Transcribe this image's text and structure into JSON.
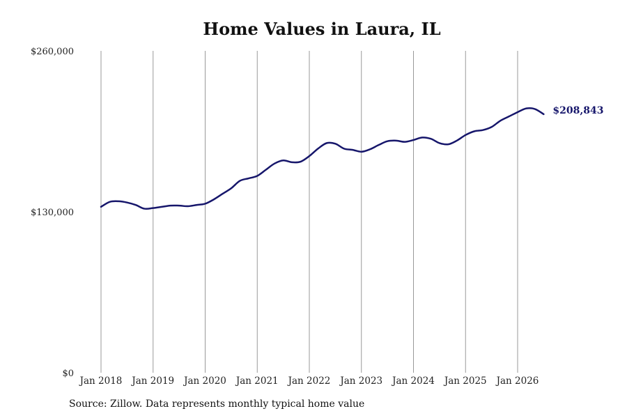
{
  "chart_data": {
    "type": "line",
    "title": "Home Values in Laura, IL",
    "xlabel": "",
    "ylabel": "",
    "source": "Source: Zillow. Data represents monthly typical home value",
    "x_tick_labels": [
      "Jan 2018",
      "Jan 2019",
      "Jan 2020",
      "Jan 2021",
      "Jan 2022",
      "Jan 2023",
      "Jan 2024",
      "Jan 2025",
      "Jan 2026"
    ],
    "y_tick_labels": [
      "$0",
      "$130,000",
      "$260,000"
    ],
    "ylim": [
      0,
      260000
    ],
    "xlim": [
      "2018-01",
      "2026-07"
    ],
    "grid": "vertical lines at each January",
    "line_color": "#16166b",
    "end_label": "$208,843",
    "series": [
      {
        "points": [
          [
            "2018-01",
            134000
          ],
          [
            "2018-03",
            138000
          ],
          [
            "2018-05",
            138500
          ],
          [
            "2018-07",
            137500
          ],
          [
            "2018-09",
            135500
          ],
          [
            "2018-11",
            132500
          ],
          [
            "2019-01",
            133000
          ],
          [
            "2019-03",
            134000
          ],
          [
            "2019-05",
            135000
          ],
          [
            "2019-07",
            135000
          ],
          [
            "2019-09",
            134500
          ],
          [
            "2019-11",
            135500
          ],
          [
            "2020-01",
            136500
          ],
          [
            "2020-03",
            140000
          ],
          [
            "2020-05",
            144500
          ],
          [
            "2020-07",
            149000
          ],
          [
            "2020-09",
            155000
          ],
          [
            "2020-11",
            157000
          ],
          [
            "2021-01",
            159000
          ],
          [
            "2021-03",
            164000
          ],
          [
            "2021-05",
            169000
          ],
          [
            "2021-07",
            171500
          ],
          [
            "2021-09",
            170000
          ],
          [
            "2021-11",
            170500
          ],
          [
            "2022-01",
            175000
          ],
          [
            "2022-03",
            181000
          ],
          [
            "2022-05",
            185500
          ],
          [
            "2022-07",
            185000
          ],
          [
            "2022-09",
            181000
          ],
          [
            "2022-11",
            180000
          ],
          [
            "2023-01",
            178500
          ],
          [
            "2023-03",
            180500
          ],
          [
            "2023-05",
            184000
          ],
          [
            "2023-07",
            187000
          ],
          [
            "2023-09",
            187500
          ],
          [
            "2023-11",
            186500
          ],
          [
            "2024-01",
            188000
          ],
          [
            "2024-03",
            190000
          ],
          [
            "2024-05",
            189000
          ],
          [
            "2024-07",
            185500
          ],
          [
            "2024-09",
            184500
          ],
          [
            "2024-11",
            187500
          ],
          [
            "2025-01",
            192000
          ],
          [
            "2025-03",
            195000
          ],
          [
            "2025-05",
            196000
          ],
          [
            "2025-07",
            198500
          ],
          [
            "2025-09",
            203500
          ],
          [
            "2025-11",
            207000
          ],
          [
            "2026-01",
            210500
          ],
          [
            "2026-03",
            213500
          ],
          [
            "2026-05",
            213000
          ],
          [
            "2026-07",
            208843
          ]
        ]
      }
    ]
  }
}
